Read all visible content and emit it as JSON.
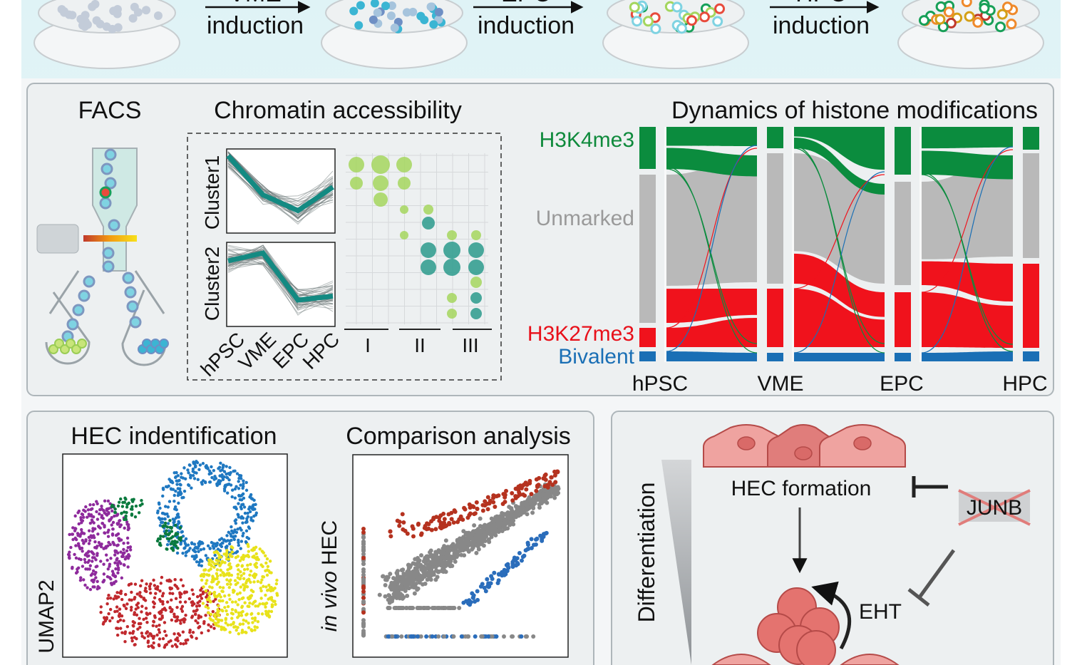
{
  "header": {
    "steps": [
      {
        "stage": "VME",
        "label": "induction"
      },
      {
        "stage": "EPC",
        "label": "induction"
      },
      {
        "stage": "HPC",
        "label": "induction"
      }
    ]
  },
  "facs": {
    "title": "FACS"
  },
  "chromatin": {
    "title": "Chromatin accessibility",
    "clusters": [
      "Cluster1",
      "Cluster2"
    ],
    "stages": [
      "hPSC",
      "VME",
      "EPC",
      "HPC"
    ],
    "groups": [
      "I",
      "II",
      "III"
    ]
  },
  "histone": {
    "title": "Dynamics of histone modifications",
    "marks": [
      "H3K4me3",
      "Unmarked",
      "H3K27me3",
      "Bivalent"
    ],
    "stages": [
      "hPSC",
      "VME",
      "EPC",
      "HPC"
    ]
  },
  "hec": {
    "title": "HEC indentification",
    "y_label": "UMAP2"
  },
  "comparison": {
    "title": "Comparison analysis",
    "y_label_italic": "in vivo",
    "y_label_rest": "HEC"
  },
  "model": {
    "gradient_label": "Differentiation",
    "formation": "HEC formation",
    "gene": "JUNB",
    "process": "EHT"
  }
}
